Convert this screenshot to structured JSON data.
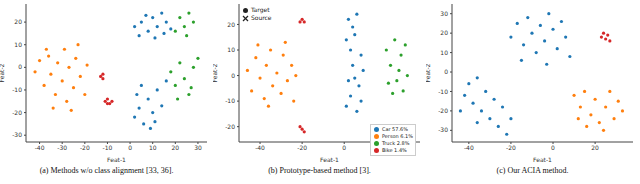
{
  "chart_data": [
    {
      "type": "scatter",
      "caption": "(a) Methods w/o class alignment [33, 36].",
      "xlabel": "Feat-1",
      "ylabel": "Feat-2",
      "xlim": [
        -46,
        34
      ],
      "ylim": [
        -33,
        28
      ],
      "xticks": [
        -40,
        -30,
        -20,
        -10,
        0,
        10,
        20,
        30
      ],
      "yticks": [
        -30,
        -20,
        -10,
        0,
        10,
        20
      ],
      "series": [
        {
          "color": "#ff7f0e",
          "marker": "circle",
          "x": [
            -42,
            -40,
            -38,
            -36,
            -35,
            -33,
            -32,
            -30,
            -29,
            -28,
            -27,
            -25,
            -24,
            -22,
            -20,
            -19,
            -34,
            -26,
            -37,
            -23
          ],
          "y": [
            -2,
            3,
            -8,
            5,
            -3,
            -12,
            2,
            -6,
            8,
            -15,
            0,
            -9,
            4,
            -4,
            -12,
            1,
            -18,
            -19,
            8,
            10
          ]
        },
        {
          "color": "#d62728",
          "marker": "circle",
          "x": [
            -11,
            -10,
            -9,
            -8,
            -10,
            -13,
            -12,
            -12
          ],
          "y": [
            -15,
            -14,
            -16,
            -15,
            -16,
            -4,
            -3,
            -5
          ]
        },
        {
          "color": "#1f77b4",
          "marker": "circle",
          "x": [
            2,
            5,
            8,
            10,
            12,
            14,
            4,
            16,
            18,
            7,
            11,
            15,
            2,
            4,
            6,
            8,
            10,
            12,
            5,
            14,
            9,
            3,
            16,
            11
          ],
          "y": [
            18,
            20,
            16,
            22,
            18,
            24,
            14,
            20,
            17,
            23,
            13,
            15,
            -22,
            -18,
            -25,
            -14,
            -20,
            -10,
            -8,
            -17,
            -27,
            -12,
            -6,
            -24
          ]
        },
        {
          "color": "#2ca02c",
          "marker": "circle",
          "x": [
            22,
            24,
            26,
            28,
            20,
            25,
            18,
            20,
            22,
            24,
            26,
            28,
            30,
            21,
            27
          ],
          "y": [
            22,
            18,
            24,
            20,
            16,
            14,
            -2,
            -8,
            2,
            -5,
            -12,
            0,
            4,
            -14,
            -9
          ]
        }
      ]
    },
    {
      "type": "scatter",
      "caption": "(b) Prototype-based method [3].",
      "xlabel": "Feat-1",
      "ylabel": "Feat-2",
      "xlim": [
        -50,
        36
      ],
      "ylim": [
        -26,
        28
      ],
      "xticks": [
        -40,
        -20,
        0,
        20
      ],
      "yticks": [
        -20,
        -10,
        0,
        10,
        20
      ],
      "legend": "lower right",
      "marker_legend": [
        {
          "label": "Target",
          "marker": "circle"
        },
        {
          "label": "Source",
          "marker": "cross"
        }
      ],
      "series": [
        {
          "name": "Car 57.6%",
          "color": "#1f77b4",
          "marker": "circle",
          "x": [
            1,
            3,
            2,
            4,
            3,
            5,
            2,
            6,
            7,
            8,
            6,
            9,
            4,
            1,
            5,
            8
          ],
          "y": [
            -12,
            -8,
            -2,
            4,
            10,
            16,
            22,
            24,
            -4,
            8,
            -14,
            2,
            19,
            14,
            -1,
            -10
          ]
        },
        {
          "name": "Person 6.1%",
          "color": "#ff7f0e",
          "marker": "circle",
          "x": [
            -46,
            -44,
            -42,
            -40,
            -38,
            -37,
            -35,
            -34,
            -32,
            -30,
            -29,
            -27,
            -25,
            -24,
            -41,
            -28,
            -36,
            -23
          ],
          "y": [
            2,
            -6,
            7,
            -1,
            -9,
            4,
            10,
            -4,
            1,
            -7,
            8,
            -2,
            4,
            -10,
            12,
            13,
            -12,
            0
          ]
        },
        {
          "name": "Truck 2.8%",
          "color": "#2ca02c",
          "marker": "circle",
          "x": [
            20,
            22,
            24,
            25,
            27,
            28,
            23,
            26,
            29,
            21,
            30
          ],
          "y": [
            10,
            4,
            14,
            -2,
            8,
            -6,
            -7,
            2,
            12,
            -3,
            0
          ]
        },
        {
          "name": "Bike 1.4%",
          "color": "#d62728",
          "marker": "circle",
          "x": [
            -20,
            -19,
            -21,
            -20,
            -19,
            -21
          ],
          "y": [
            22,
            21,
            21,
            -21,
            -22,
            -20
          ]
        }
      ]
    },
    {
      "type": "scatter",
      "caption": "(c) Our ACIA method.",
      "xlabel": "Feat-1",
      "ylabel": "Feat-2",
      "xlim": [
        -48,
        38
      ],
      "ylim": [
        -36,
        35
      ],
      "xticks": [
        -40,
        -20,
        0,
        20
      ],
      "yticks": [
        -30,
        -20,
        -10,
        0,
        10,
        20,
        30
      ],
      "series": [
        {
          "color": "#1f77b4",
          "marker": "circle",
          "x": [
            -20,
            -17,
            -14,
            -12,
            -10,
            -8,
            -6,
            -4,
            -2,
            0,
            2,
            4,
            6,
            8,
            -15,
            -3,
            -42,
            -40,
            -38,
            -36,
            -34,
            -32,
            -30,
            -28,
            -26,
            -24,
            -22,
            -20,
            -36,
            -44
          ],
          "y": [
            18,
            25,
            14,
            28,
            20,
            10,
            24,
            16,
            30,
            22,
            12,
            26,
            18,
            8,
            6,
            4,
            -12,
            -6,
            -16,
            -3,
            -20,
            -10,
            -24,
            -14,
            -28,
            -18,
            -32,
            -24,
            -26,
            -20
          ]
        },
        {
          "color": "#d62728",
          "marker": "circle",
          "x": [
            23,
            25,
            24,
            26,
            27
          ],
          "y": [
            18,
            17,
            20,
            19,
            16
          ]
        },
        {
          "color": "#ff7f0e",
          "marker": "circle",
          "x": [
            10,
            13,
            15,
            18,
            20,
            22,
            25,
            27,
            29,
            31,
            33,
            16,
            24,
            12
          ],
          "y": [
            -12,
            -18,
            -10,
            -22,
            -14,
            -26,
            -18,
            -10,
            -24,
            -15,
            -20,
            -28,
            -30,
            -24
          ]
        }
      ]
    }
  ]
}
